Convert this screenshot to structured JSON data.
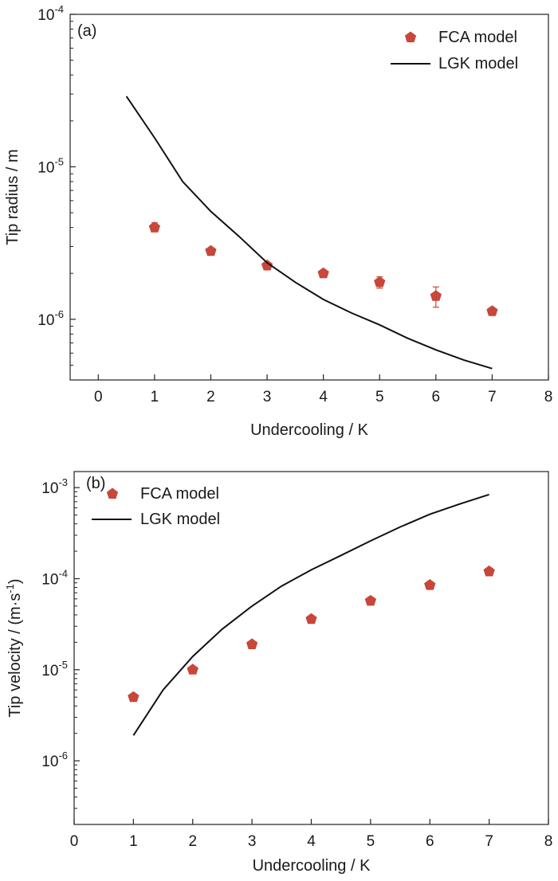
{
  "chart_data": [
    {
      "type": "line",
      "panel_label": "(a)",
      "xlabel": "Undercooling / K",
      "ylabel": "Tip radius / m",
      "xlim": [
        -0.5,
        8
      ],
      "ylim": [
        4e-07,
        0.0001
      ],
      "yscale": "log",
      "x_ticks": [
        0,
        1,
        2,
        3,
        4,
        5,
        6,
        7,
        8
      ],
      "y_tick_labels": [
        {
          "value": 0.0001,
          "base": "10",
          "exp": "-4"
        },
        {
          "value": 1e-05,
          "base": "10",
          "exp": "-5"
        },
        {
          "value": 1e-06,
          "base": "10",
          "exp": "-6"
        }
      ],
      "legend_position": "top-right",
      "grid": false,
      "marker_color": "#c8463a",
      "line_color": "#111111",
      "series": [
        {
          "name": "FCA model",
          "kind": "scatter",
          "marker": "pentagon",
          "x": [
            1,
            2,
            3,
            4,
            5,
            6,
            7
          ],
          "y": [
            4e-06,
            2.8e-06,
            2.25e-06,
            2e-06,
            1.75e-06,
            1.42e-06,
            1.13e-06
          ],
          "err_low": [
            3.75e-06,
            2.7e-06,
            2.2e-06,
            1.95e-06,
            1.6e-06,
            1.2e-06,
            1.1e-06
          ],
          "err_high": [
            4.3e-06,
            2.9e-06,
            2.3e-06,
            2.05e-06,
            1.9e-06,
            1.63e-06,
            1.16e-06
          ]
        },
        {
          "name": "LGK model",
          "kind": "line",
          "x": [
            0.5,
            1.0,
            1.5,
            2.0,
            2.5,
            3.0,
            3.5,
            4.0,
            4.5,
            5.0,
            5.5,
            6.0,
            6.5,
            7.0
          ],
          "y": [
            2.9e-05,
            1.55e-05,
            8e-06,
            5.1e-06,
            3.5e-06,
            2.35e-06,
            1.75e-06,
            1.35e-06,
            1.1e-06,
            9.2e-07,
            7.5e-07,
            6.3e-07,
            5.4e-07,
            4.75e-07
          ]
        }
      ]
    },
    {
      "type": "line",
      "panel_label": "(b)",
      "xlabel": "Undercooling / K",
      "ylabel": "Tip velocity / (m·s",
      "ylabel_sup": "-1",
      "ylabel_close": ")",
      "xlim": [
        0,
        8
      ],
      "ylim": [
        2e-07,
        0.0015
      ],
      "yscale": "log",
      "x_ticks": [
        0,
        1,
        2,
        3,
        4,
        5,
        6,
        7,
        8
      ],
      "y_tick_labels": [
        {
          "value": 0.001,
          "base": "10",
          "exp": "-3"
        },
        {
          "value": 0.0001,
          "base": "10",
          "exp": "-4"
        },
        {
          "value": 1e-05,
          "base": "10",
          "exp": "-5"
        },
        {
          "value": 1e-06,
          "base": "10",
          "exp": "-6"
        }
      ],
      "legend_position": "top-left",
      "grid": false,
      "marker_color": "#c8463a",
      "line_color": "#111111",
      "series": [
        {
          "name": "FCA model",
          "kind": "scatter",
          "marker": "pentagon",
          "x": [
            1,
            2,
            3,
            4,
            5,
            6,
            7
          ],
          "y": [
            5e-06,
            1e-05,
            1.9e-05,
            3.6e-05,
            5.7e-05,
            8.5e-05,
            0.00012
          ]
        },
        {
          "name": "LGK model",
          "kind": "line",
          "x": [
            1.0,
            1.5,
            2.0,
            2.5,
            3.0,
            3.5,
            4.0,
            4.5,
            5.0,
            5.5,
            6.0,
            6.5,
            7.0
          ],
          "y": [
            1.9e-06,
            6e-06,
            1.4e-05,
            2.8e-05,
            5e-05,
            8.3e-05,
            0.000125,
            0.00018,
            0.00026,
            0.00037,
            0.00051,
            0.00066,
            0.00084
          ]
        }
      ]
    }
  ]
}
